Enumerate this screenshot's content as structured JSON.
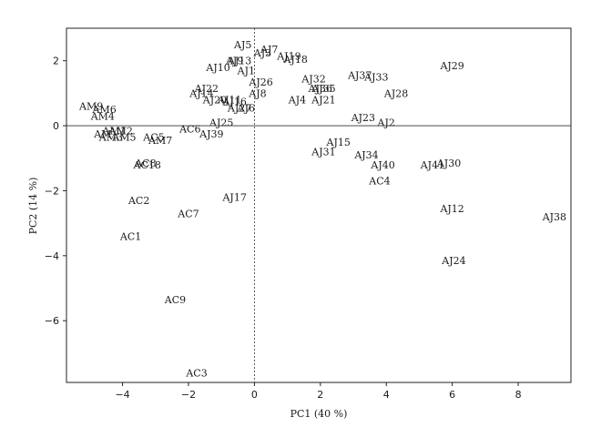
{
  "chart_data": {
    "type": "scatter",
    "xlabel": "PC1 (40 %)",
    "ylabel": "PC2 (14 %)",
    "xlim": [
      -5.7,
      9.6
    ],
    "ylim": [
      -7.9,
      3.0
    ],
    "xticks": [
      -4,
      -2,
      0,
      2,
      4,
      6,
      8
    ],
    "yticks": [
      -6,
      -4,
      -2,
      0,
      2
    ],
    "reference_lines": {
      "x": 0,
      "y": 0
    },
    "points": [
      {
        "label": "AJ5",
        "x": -0.35,
        "y": 2.5
      },
      {
        "label": "AJ7",
        "x": 0.45,
        "y": 2.35
      },
      {
        "label": "AJ3",
        "x": 0.25,
        "y": 2.25
      },
      {
        "label": "AJ19",
        "x": 1.05,
        "y": 2.15
      },
      {
        "label": "AJ18",
        "x": 1.25,
        "y": 2.05
      },
      {
        "label": "AJ9",
        "x": -0.6,
        "y": 2.0
      },
      {
        "label": "AJ13",
        "x": -0.45,
        "y": 2.0
      },
      {
        "label": "AJ10",
        "x": -1.1,
        "y": 1.8
      },
      {
        "label": "AJ1",
        "x": -0.25,
        "y": 1.7
      },
      {
        "label": "AJ29",
        "x": 6.0,
        "y": 1.85
      },
      {
        "label": "AJ37",
        "x": 3.2,
        "y": 1.55
      },
      {
        "label": "AJ33",
        "x": 3.7,
        "y": 1.5
      },
      {
        "label": "AJ32",
        "x": 1.8,
        "y": 1.45
      },
      {
        "label": "AJ26",
        "x": 0.2,
        "y": 1.35
      },
      {
        "label": "AJ36",
        "x": 2.0,
        "y": 1.15
      },
      {
        "label": "AJ35",
        "x": 2.1,
        "y": 1.15
      },
      {
        "label": "AJ28",
        "x": 4.3,
        "y": 1.0
      },
      {
        "label": "AJ22",
        "x": -1.45,
        "y": 1.15
      },
      {
        "label": "AJ14",
        "x": -1.6,
        "y": 1.0
      },
      {
        "label": "AJ8",
        "x": 0.1,
        "y": 1.0
      },
      {
        "label": "AJ4",
        "x": 1.3,
        "y": 0.8
      },
      {
        "label": "AJ21",
        "x": 2.1,
        "y": 0.8
      },
      {
        "label": "AJ20",
        "x": -1.2,
        "y": 0.8
      },
      {
        "label": "AJ11",
        "x": -0.75,
        "y": 0.8
      },
      {
        "label": "AJ16",
        "x": -0.6,
        "y": 0.75
      },
      {
        "label": "AJ27",
        "x": -0.45,
        "y": 0.55
      },
      {
        "label": "AJ6",
        "x": -0.25,
        "y": 0.55
      },
      {
        "label": "AM9",
        "x": -4.95,
        "y": 0.6
      },
      {
        "label": "AM6",
        "x": -4.55,
        "y": 0.5
      },
      {
        "label": "AM4",
        "x": -4.6,
        "y": 0.3
      },
      {
        "label": "AJ23",
        "x": 3.3,
        "y": 0.25
      },
      {
        "label": "AJ2",
        "x": 4.0,
        "y": 0.1
      },
      {
        "label": "AJ25",
        "x": -1.0,
        "y": 0.1
      },
      {
        "label": "AC6",
        "x": -1.95,
        "y": -0.1
      },
      {
        "label": "AJ39",
        "x": -1.3,
        "y": -0.25
      },
      {
        "label": "AM1",
        "x": -4.25,
        "y": -0.15
      },
      {
        "label": "AM2",
        "x": -4.05,
        "y": -0.15
      },
      {
        "label": "AM",
        "x": -4.6,
        "y": -0.25
      },
      {
        "label": "AM3",
        "x": -4.35,
        "y": -0.35
      },
      {
        "label": "AM5",
        "x": -3.95,
        "y": -0.35
      },
      {
        "label": "AC5",
        "x": -3.05,
        "y": -0.35
      },
      {
        "label": "AM7",
        "x": -2.85,
        "y": -0.45
      },
      {
        "label": "AJ15",
        "x": 2.55,
        "y": -0.5
      },
      {
        "label": "AJ31",
        "x": 2.1,
        "y": -0.8
      },
      {
        "label": "AJ34",
        "x": 3.4,
        "y": -0.9
      },
      {
        "label": "AJ40",
        "x": 3.9,
        "y": -1.2
      },
      {
        "label": "AJ41",
        "x": 5.4,
        "y": -1.2
      },
      {
        "label": "AJ30",
        "x": 5.9,
        "y": -1.15
      },
      {
        "label": "AC8",
        "x": -3.3,
        "y": -1.15
      },
      {
        "label": "AC18",
        "x": -3.25,
        "y": -1.2
      },
      {
        "label": "AC4",
        "x": 3.8,
        "y": -1.7
      },
      {
        "label": "AJ17",
        "x": -0.6,
        "y": -2.2
      },
      {
        "label": "AC2",
        "x": -3.5,
        "y": -2.3
      },
      {
        "label": "AJ12",
        "x": 6.0,
        "y": -2.55
      },
      {
        "label": "AJ38",
        "x": 9.1,
        "y": -2.8
      },
      {
        "label": "AC7",
        "x": -2.0,
        "y": -2.7
      },
      {
        "label": "AC1",
        "x": -3.75,
        "y": -3.4
      },
      {
        "label": "AJ24",
        "x": 6.05,
        "y": -4.15
      },
      {
        "label": "AC9",
        "x": -2.4,
        "y": -5.35
      },
      {
        "label": "AC3",
        "x": -1.75,
        "y": -7.6
      }
    ]
  }
}
